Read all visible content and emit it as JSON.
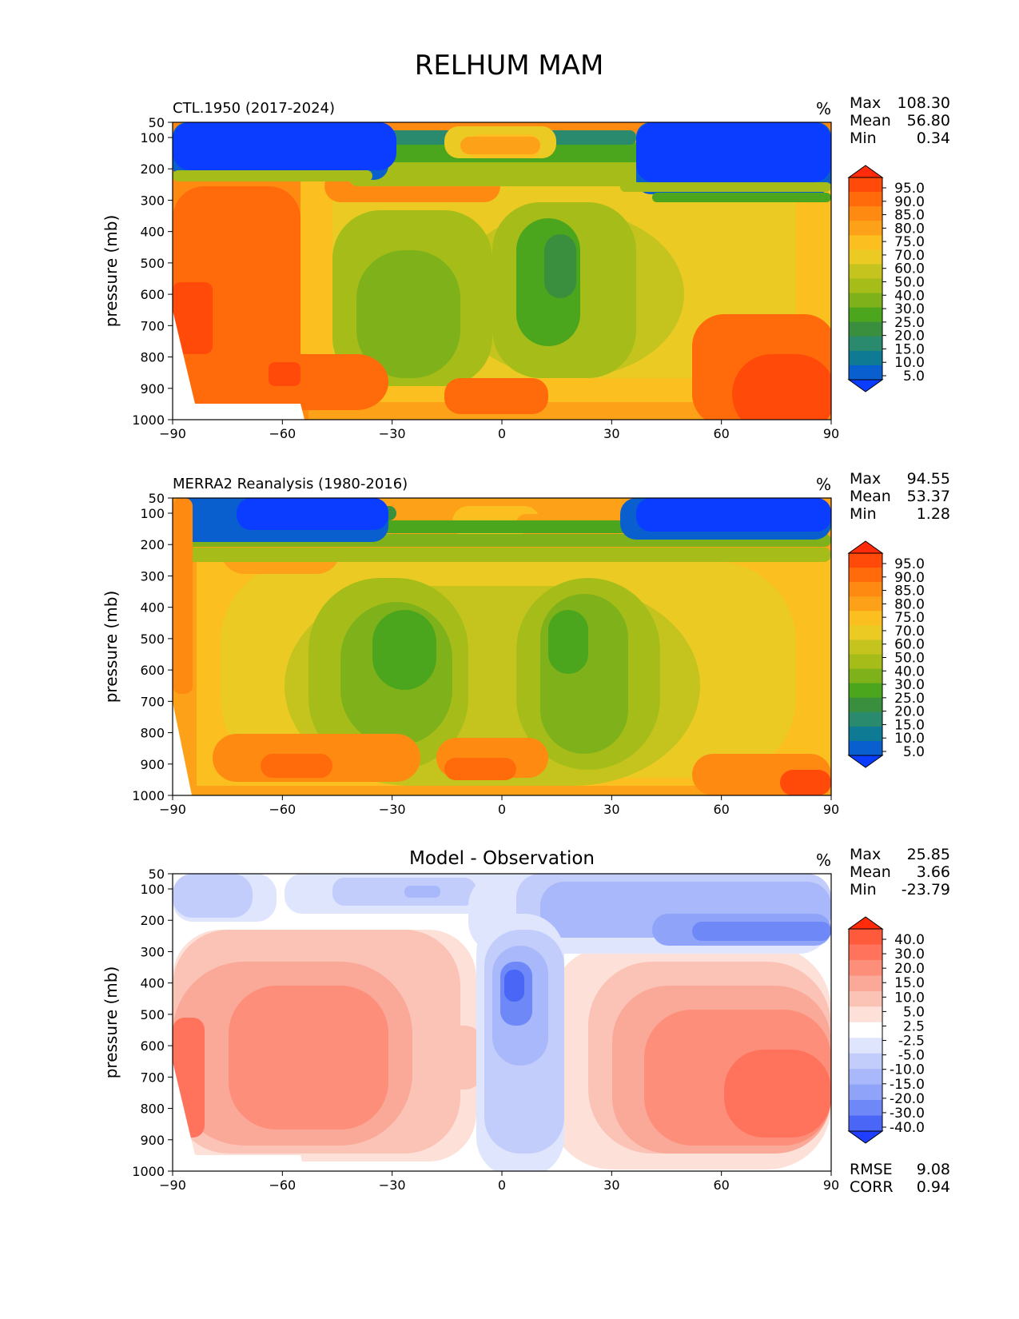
{
  "title": "RELHUM MAM",
  "chart_data": [
    {
      "type": "heatmap",
      "title": "CTL.1950 (2017-2024)",
      "units": "%",
      "ylabel": "pressure (mb)",
      "xticks": [
        "−90",
        "−60",
        "−30",
        "0",
        "30",
        "60",
        "90"
      ],
      "yticks": [
        "50",
        "100",
        "200",
        "300",
        "400",
        "500",
        "600",
        "700",
        "800",
        "900",
        "1000"
      ],
      "stats": [
        {
          "label": "Max",
          "value": "108.30"
        },
        {
          "label": "Mean",
          "value": "56.80"
        },
        {
          "label": "Min",
          "value": "0.34"
        }
      ],
      "colorbar": {
        "labels": [
          "95.0",
          "90.0",
          "85.0",
          "80.0",
          "75.0",
          "70.0",
          "60.0",
          "50.0",
          "40.0",
          "30.0",
          "25.0",
          "20.0",
          "15.0",
          "10.0",
          "5.0"
        ],
        "colors": [
          "#ff2b0a",
          "#ff4a0a",
          "#ff6a0a",
          "#ff8a12",
          "#fca118",
          "#fbbf1f",
          "#ecca24",
          "#c5c41e",
          "#a6bd19",
          "#7fb21a",
          "#4ca61d",
          "#3a8f3f",
          "#2a8a6e",
          "#0f7a94",
          "#0a5fcf",
          "#0a3dff"
        ]
      }
    },
    {
      "type": "heatmap",
      "title": "MERRA2 Reanalysis (1980-2016)",
      "units": "%",
      "ylabel": "pressure (mb)",
      "xticks": [
        "−90",
        "−60",
        "−30",
        "0",
        "30",
        "60",
        "90"
      ],
      "yticks": [
        "50",
        "100",
        "200",
        "300",
        "400",
        "500",
        "600",
        "700",
        "800",
        "900",
        "1000"
      ],
      "stats": [
        {
          "label": "Max",
          "value": "94.55"
        },
        {
          "label": "Mean",
          "value": "53.37"
        },
        {
          "label": "Min",
          "value": "1.28"
        }
      ],
      "colorbar": {
        "labels": [
          "95.0",
          "90.0",
          "85.0",
          "80.0",
          "75.0",
          "70.0",
          "60.0",
          "50.0",
          "40.0",
          "30.0",
          "25.0",
          "20.0",
          "15.0",
          "10.0",
          "5.0"
        ],
        "colors": [
          "#ff2b0a",
          "#ff4a0a",
          "#ff6a0a",
          "#ff8a12",
          "#fca118",
          "#fbbf1f",
          "#ecca24",
          "#c5c41e",
          "#a6bd19",
          "#7fb21a",
          "#4ca61d",
          "#3a8f3f",
          "#2a8a6e",
          "#0f7a94",
          "#0a5fcf",
          "#0a3dff"
        ]
      }
    },
    {
      "type": "heatmap",
      "title": "Model - Observation",
      "units": "%",
      "ylabel": "pressure (mb)",
      "xticks": [
        "−90",
        "−60",
        "−30",
        "0",
        "30",
        "60",
        "90"
      ],
      "yticks": [
        "50",
        "100",
        "200",
        "300",
        "400",
        "500",
        "600",
        "700",
        "800",
        "900",
        "1000"
      ],
      "stats": [
        {
          "label": "Max",
          "value": "25.85"
        },
        {
          "label": "Mean",
          "value": "3.66"
        },
        {
          "label": "Min",
          "value": "-23.79"
        }
      ],
      "extra_stats": [
        {
          "label": "RMSE",
          "value": "9.08"
        },
        {
          "label": "CORR",
          "value": "0.94"
        }
      ],
      "colorbar": {
        "labels": [
          "40.0",
          "30.0",
          "20.0",
          "15.0",
          "10.0",
          "5.0",
          "2.5",
          "-2.5",
          "-5.0",
          "-10.0",
          "-15.0",
          "-20.0",
          "-30.0",
          "-40.0"
        ],
        "colors": [
          "#ff2b0a",
          "#ff5a3c",
          "#ff735c",
          "#fc8e7a",
          "#faa898",
          "#fbc3b6",
          "#fde0d8",
          "#ffffff",
          "#dfe5fd",
          "#c3cdfb",
          "#a9b8fa",
          "#8fa4f9",
          "#6e88f7",
          "#4a66f6",
          "#1f3eff"
        ]
      }
    }
  ]
}
